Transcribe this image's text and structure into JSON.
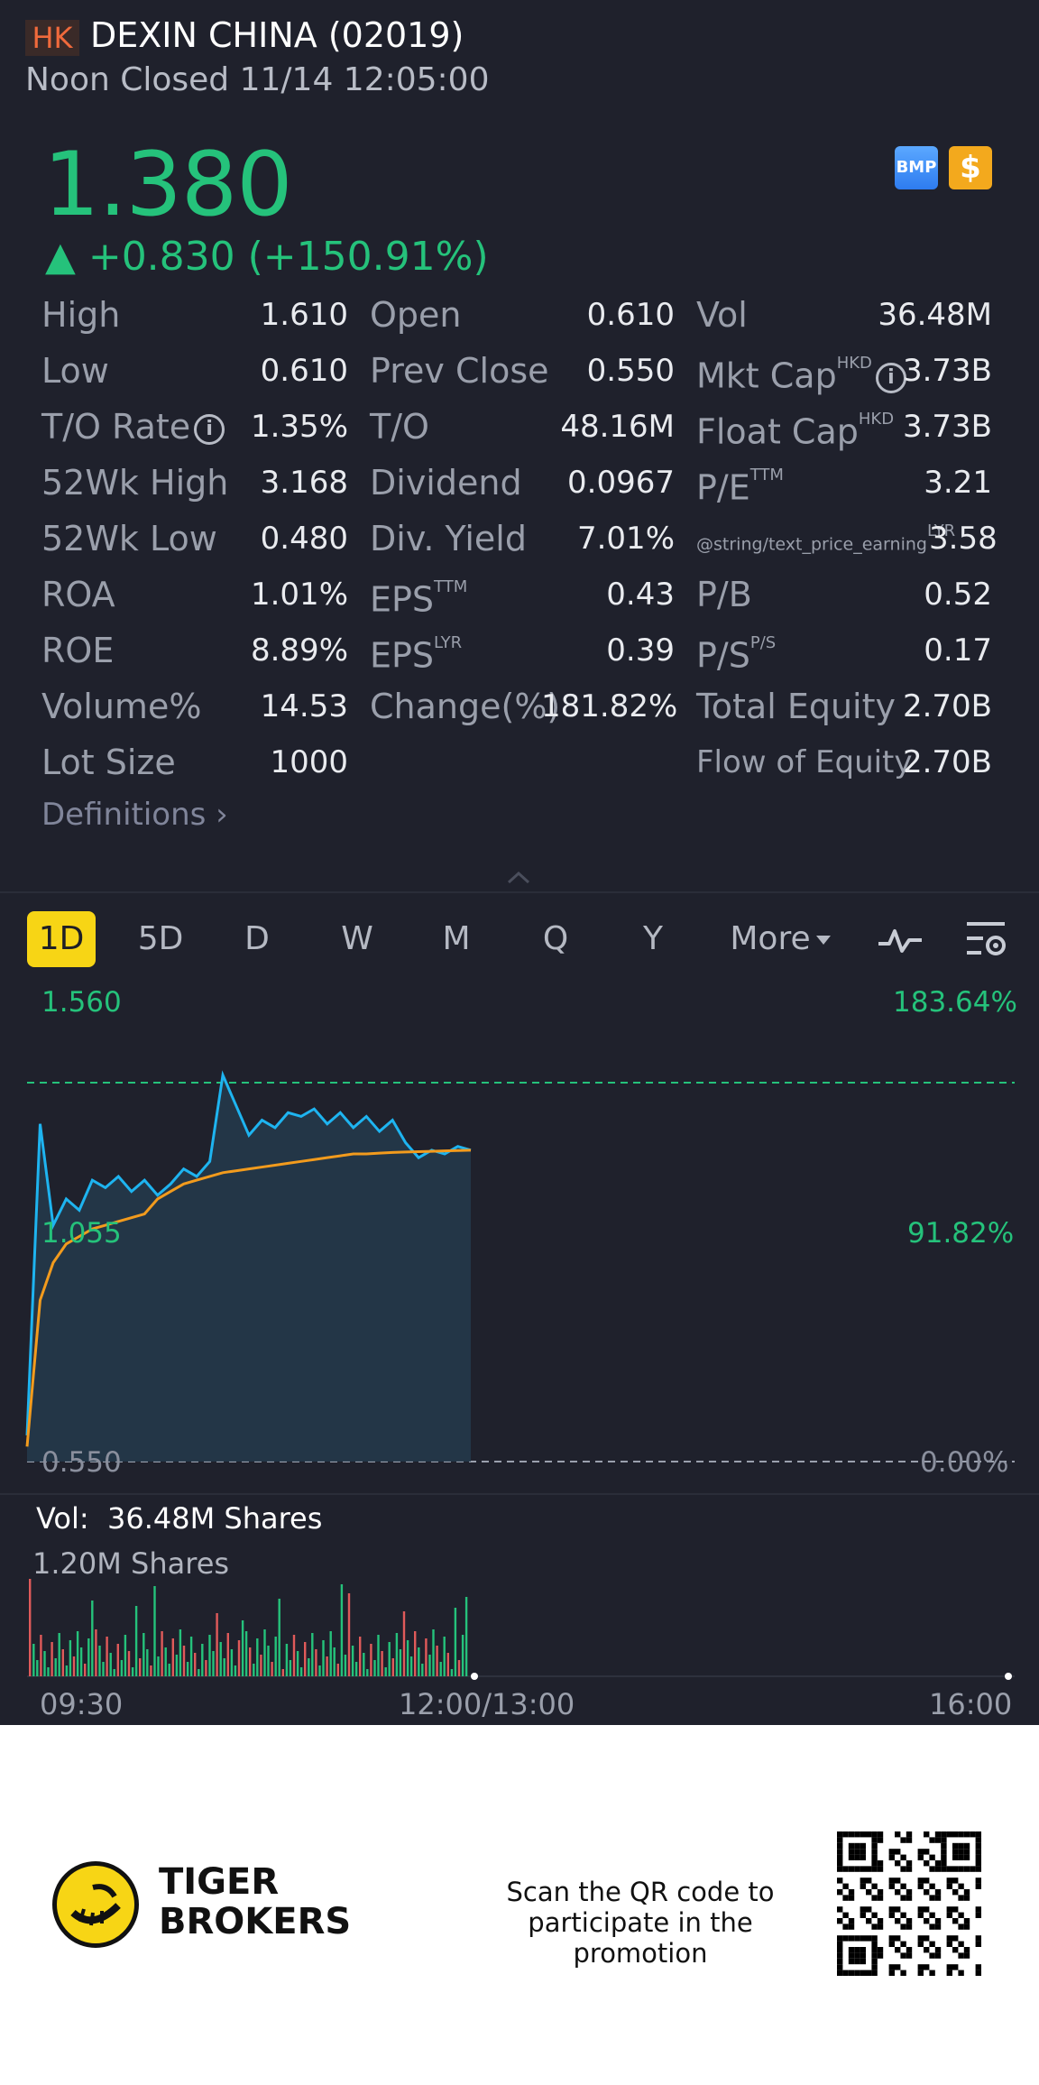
{
  "header": {
    "market": "HK",
    "name": "DEXIN CHINA (02019)",
    "status": "Noon Closed 11/14 12:05:00"
  },
  "quote": {
    "price": "1.380",
    "change": "▲ +0.830 (+150.91%)",
    "badge_bmp": "BMP",
    "badge_currency": "$"
  },
  "stats": {
    "col1": [
      {
        "label": "High",
        "value": "1.610"
      },
      {
        "label": "Low",
        "value": "0.610"
      },
      {
        "label": "T/O Rate",
        "value": "1.35%"
      },
      {
        "label": "52Wk High",
        "value": "3.168"
      },
      {
        "label": "52Wk Low",
        "value": "0.480"
      },
      {
        "label": "ROA",
        "value": "1.01%"
      },
      {
        "label": "ROE",
        "value": "8.89%"
      },
      {
        "label": "Volume%",
        "value": "14.53"
      },
      {
        "label": "Lot Size",
        "value": "1000"
      }
    ],
    "col2": [
      {
        "label": "Open",
        "value": "0.610",
        "sup": ""
      },
      {
        "label": "Prev Close",
        "value": "0.550",
        "sup": ""
      },
      {
        "label": "T/O",
        "value": "48.16M",
        "sup": ""
      },
      {
        "label": "Dividend",
        "value": "0.0967",
        "sup": ""
      },
      {
        "label": "Div. Yield",
        "value": "7.01%",
        "sup": ""
      },
      {
        "label": "EPS",
        "value": "0.43",
        "sup": "TTM"
      },
      {
        "label": "EPS",
        "value": "0.39",
        "sup": "LYR"
      },
      {
        "label": "Change(%)",
        "value": "181.82%",
        "sup": ""
      }
    ],
    "col3": [
      {
        "label": "Vol",
        "value": "36.48M",
        "sup": ""
      },
      {
        "label": "Mkt Cap",
        "value": "3.73B",
        "sup": "HKD"
      },
      {
        "label": "Float Cap",
        "value": "3.73B",
        "sup": "HKD"
      },
      {
        "label": "P/E",
        "value": "3.21",
        "sup": "TTM"
      },
      {
        "label": "@string/text_price_earning",
        "value": "3.58",
        "sup": "LYR"
      },
      {
        "label": "P/B",
        "value": "0.52",
        "sup": ""
      },
      {
        "label": "P/S",
        "value": "0.17",
        "sup": "P/S"
      },
      {
        "label": "Total Equity",
        "value": "2.70B",
        "sup": ""
      },
      {
        "label": "Flow of Equity",
        "value": "2.70B",
        "sup": ""
      }
    ],
    "definitions": "Definitions"
  },
  "tabs": [
    "1D",
    "5D",
    "D",
    "W",
    "M",
    "Q",
    "Y",
    "More"
  ],
  "chart": {
    "y_left": [
      "1.560",
      "1.055",
      "0.550"
    ],
    "y_right": [
      "183.64%",
      "91.82%",
      "0.00%"
    ],
    "vol_label": "Vol:",
    "vol_value": "36.48M Shares",
    "vol_max": "1.20M Shares",
    "time_labels": [
      "09:30",
      "12:00/13:00",
      "16:00"
    ]
  },
  "chart_data": {
    "type": "line",
    "series": [
      {
        "values": [
          0.62,
          1.45,
          1.18,
          1.25,
          1.22,
          1.3,
          1.28,
          1.31,
          1.27,
          1.3,
          1.26,
          1.29,
          1.33,
          1.31,
          1.35,
          1.58,
          1.5,
          1.42,
          1.46,
          1.44,
          1.48,
          1.47,
          1.49,
          1.45,
          1.48,
          1.44,
          1.47,
          1.43,
          1.46,
          1.4,
          1.36,
          1.38,
          1.37,
          1.39,
          1.38
        ]
      },
      {
        "values": [
          0.59,
          0.98,
          1.08,
          1.13,
          1.15,
          1.17,
          1.18,
          1.19,
          1.2,
          1.21,
          1.25,
          1.27,
          1.29,
          1.3,
          1.31,
          1.32,
          1.325,
          1.33,
          1.335,
          1.34,
          1.345,
          1.35,
          1.355,
          1.36,
          1.365,
          1.37,
          1.37,
          1.372,
          1.374,
          1.375,
          1.376,
          1.377,
          1.378,
          1.379,
          1.38
        ]
      }
    ],
    "ylim": [
      0.55,
      1.56
    ],
    "prev_close": 0.55
  },
  "footer": {
    "brand_line1": "TIGER",
    "brand_line2": "BROKERS",
    "promo": "Scan the QR code to participate in the promotion"
  },
  "colors": {
    "background": "#1f212c",
    "up": "#25c27b",
    "accent": "#f7d515",
    "price_line": "#1eb4f0",
    "avg_line": "#f29b1d"
  }
}
